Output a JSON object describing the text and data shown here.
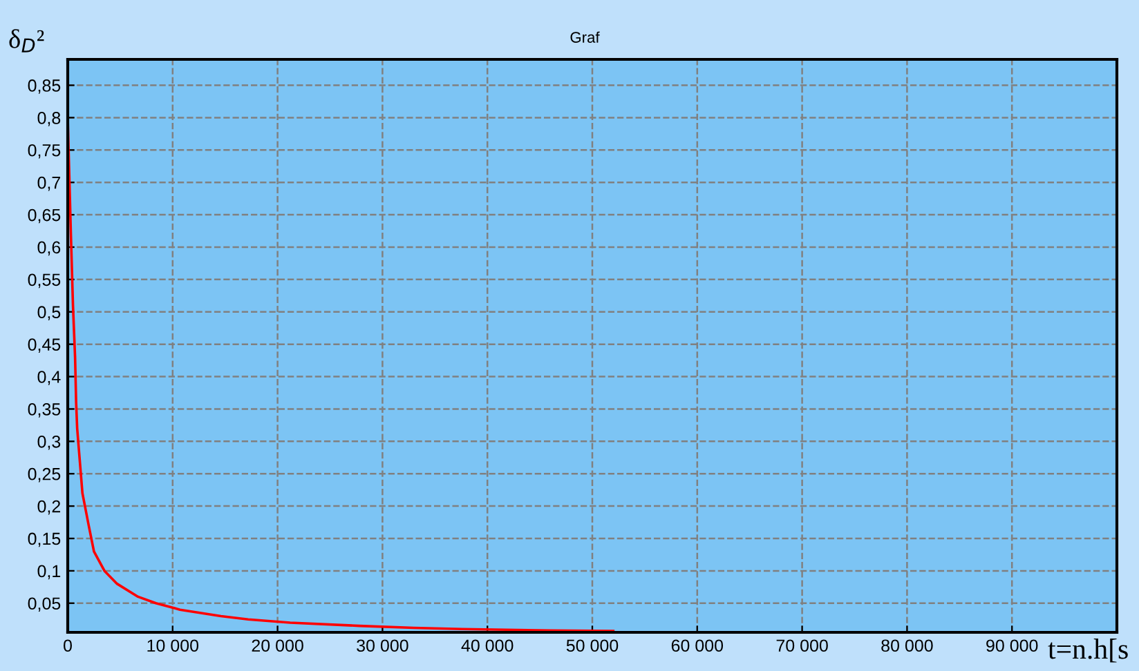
{
  "chart_data": {
    "type": "line",
    "title": "Graf",
    "ylabel": "δ$_{D}$²",
    "xlabel": "t=n.h[s",
    "x": [
      0,
      300,
      500,
      700,
      800,
      900,
      1200,
      1400,
      2000,
      2500,
      3500,
      4700,
      6700,
      8400,
      10700,
      14600,
      17200,
      21200,
      27800,
      33000,
      37600,
      46000,
      52000
    ],
    "series": [
      {
        "color": "#ff0000",
        "values": [
          0.8,
          0.62,
          0.51,
          0.43,
          0.36,
          0.32,
          0.26,
          0.22,
          0.17,
          0.13,
          0.1,
          0.08,
          0.06,
          0.05,
          0.04,
          0.03,
          0.025,
          0.02,
          0.015,
          0.012,
          0.01,
          0.008,
          0.007
        ]
      }
    ],
    "xlim": [
      0,
      100000
    ],
    "ylim": [
      0.005,
      0.89
    ],
    "xticks": [
      0,
      {
        "value": 10000,
        "label": "10 000"
      },
      {
        "value": 20000,
        "label": "20 000"
      },
      {
        "value": 30000,
        "label": "30 000"
      },
      {
        "value": 40000,
        "label": "40 000"
      },
      {
        "value": 50000,
        "label": "50 000"
      },
      {
        "value": 60000,
        "label": "60 000"
      },
      {
        "value": 70000,
        "label": "70 000"
      },
      {
        "value": 80000,
        "label": "80 000"
      },
      {
        "value": 90000,
        "label": "90 000"
      }
    ],
    "yticks": [
      {
        "value": 0.05,
        "label": "0,05"
      },
      {
        "value": 0.1,
        "label": "0,1"
      },
      {
        "value": 0.15,
        "label": "0,15"
      },
      {
        "value": 0.2,
        "label": "0,2"
      },
      {
        "value": 0.25,
        "label": "0,25"
      },
      {
        "value": 0.3,
        "label": "0,3"
      },
      {
        "value": 0.35,
        "label": "0,35"
      },
      {
        "value": 0.4,
        "label": "0,4"
      },
      {
        "value": 0.45,
        "label": "0,45"
      },
      {
        "value": 0.5,
        "label": "0,5"
      },
      {
        "value": 0.55,
        "label": "0,55"
      },
      {
        "value": 0.6,
        "label": "0,6"
      },
      {
        "value": 0.65,
        "label": "0,65"
      },
      {
        "value": 0.7,
        "label": "0,7"
      },
      {
        "value": 0.75,
        "label": "0,75"
      },
      {
        "value": 0.8,
        "label": "0,8"
      },
      {
        "value": 0.85,
        "label": "0,85"
      }
    ],
    "grid": true,
    "line_style": "solid",
    "marker": "none"
  }
}
